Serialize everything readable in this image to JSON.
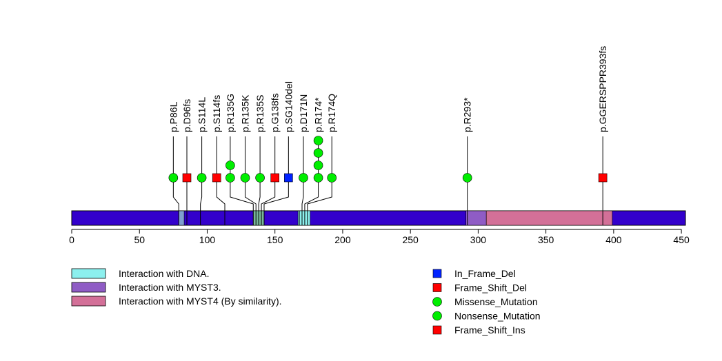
{
  "chart_data": {
    "type": "lollipop",
    "protein_length": 453,
    "x_axis": {
      "range": [
        0,
        453
      ],
      "ticks": [
        0,
        50,
        100,
        150,
        200,
        250,
        300,
        350,
        400,
        450
      ]
    },
    "domains": [
      {
        "name": "Interaction with DNA.",
        "start": 79,
        "end": 83,
        "color": "#7f9fd0"
      },
      {
        "name": "Interaction with DNA.",
        "start": 134,
        "end": 142,
        "color": "#79b89b"
      },
      {
        "name": "Interaction with DNA.",
        "start": 167,
        "end": 176,
        "color": "#8cf0ee"
      },
      {
        "name": "Interaction with MYST3.",
        "start": 291,
        "end": 306,
        "color": "#8f5cc5"
      },
      {
        "name": "Interaction with MYST4 (By similarity).",
        "start": 306,
        "end": 399,
        "color": "#d37098"
      }
    ],
    "backbone_color": "#3300cc",
    "mutations": [
      {
        "label": "p.P86L",
        "pos": 75,
        "type": "Missense_Mutation",
        "count": 1
      },
      {
        "label": "p.D96fs",
        "pos": 85,
        "type": "Frame_Shift_Del",
        "count": 1
      },
      {
        "label": "p.S114L",
        "pos": 96,
        "type": "Missense_Mutation",
        "count": 1
      },
      {
        "label": "p.S114fs",
        "pos": 107,
        "type": "Frame_Shift_Del",
        "count": 1
      },
      {
        "label": "p.R135G",
        "pos": 117,
        "type": "Missense_Mutation",
        "count": 2
      },
      {
        "label": "p.R135K",
        "pos": 128,
        "type": "Missense_Mutation",
        "count": 1
      },
      {
        "label": "p.R135S",
        "pos": 139,
        "type": "Missense_Mutation",
        "count": 1
      },
      {
        "label": "p.G138fs",
        "pos": 150,
        "type": "Frame_Shift_Del",
        "count": 1
      },
      {
        "label": "p.SG140del",
        "pos": 160,
        "type": "In_Frame_Del",
        "count": 1
      },
      {
        "label": "p.D171N",
        "pos": 171,
        "type": "Missense_Mutation",
        "count": 1
      },
      {
        "label": "p.R174*",
        "pos": 182,
        "type": "Missense_Mutation",
        "count": 4
      },
      {
        "label": "p.R174Q",
        "pos": 192,
        "type": "Missense_Mutation",
        "count": 1
      },
      {
        "label": "p.R293*",
        "pos": 292,
        "type": "Missense_Mutation",
        "count": 1
      },
      {
        "label": "p.GGERSPPR393fs",
        "pos": 392,
        "type": "Frame_Shift_Del",
        "count": 1
      }
    ],
    "anchors": [
      79,
      85,
      95,
      113,
      134,
      136,
      138,
      140,
      142,
      168,
      170,
      172,
      174,
      292,
      392
    ],
    "mutation_anchor": [
      0,
      1,
      2,
      3,
      4,
      5,
      6,
      7,
      8,
      10,
      11,
      12,
      13,
      14
    ],
    "legend_left": [
      {
        "label": "Interaction with DNA.",
        "color": "#8cf0ee"
      },
      {
        "label": "Interaction with MYST3.",
        "color": "#8f5cc5"
      },
      {
        "label": "Interaction with MYST4 (By similarity).",
        "color": "#d37098"
      }
    ],
    "legend_right": [
      {
        "label": "In_Frame_Del",
        "shape": "square",
        "color": "#0022ff"
      },
      {
        "label": "Frame_Shift_Del",
        "shape": "square",
        "color": "#ff0000"
      },
      {
        "label": "Missense_Mutation",
        "shape": "circle",
        "color": "#00ee00"
      },
      {
        "label": "Nonsense_Mutation",
        "shape": "circle",
        "color": "#00ee00"
      },
      {
        "label": "Frame_Shift_Ins",
        "shape": "square",
        "color": "#ff0000"
      }
    ],
    "type_colors": {
      "Missense_Mutation": "#00ee00",
      "Nonsense_Mutation": "#00ee00",
      "Frame_Shift_Del": "#ff0000",
      "Frame_Shift_Ins": "#ff0000",
      "In_Frame_Del": "#0022ff"
    }
  }
}
